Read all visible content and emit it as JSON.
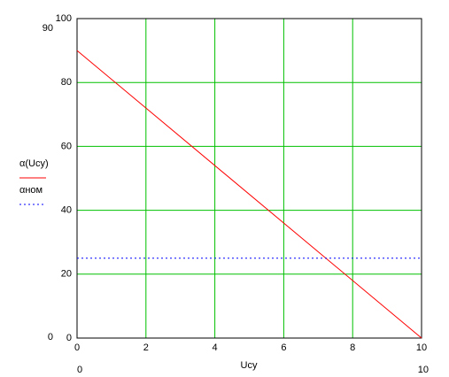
{
  "chart_data": {
    "type": "line",
    "x": [
      0,
      10
    ],
    "series": [
      {
        "name": "α(Ucy)",
        "color": "#ff0000",
        "dash": false,
        "values": [
          90,
          0
        ]
      },
      {
        "name": "αном",
        "color": "#0000ff",
        "dash": true,
        "values": [
          25,
          25
        ]
      }
    ],
    "xlabel": "Ucy",
    "xlim": [
      0,
      10
    ],
    "ylim": [
      0,
      100
    ],
    "xticks": [
      0,
      2,
      4,
      6,
      8,
      10
    ],
    "yticks": [
      0,
      20,
      40,
      60,
      80,
      100
    ],
    "grid": true,
    "grid_color": "#00c000",
    "limit_labels": {
      "y_top": 90,
      "y_bottom": 0,
      "x_left": 0,
      "x_right": 10
    }
  }
}
